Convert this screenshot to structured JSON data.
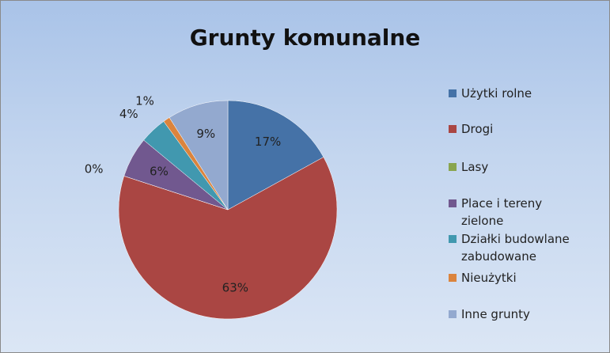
{
  "chart_data": {
    "type": "pie",
    "title": "Grunty komunalne",
    "categories": [
      "Użytki rolne",
      "Drogi",
      "Lasy",
      "Place i tereny zielone",
      "Działki budowlane zabudowane",
      "Nieużytki",
      "Inne grunty"
    ],
    "values": [
      17,
      63,
      0,
      6,
      4,
      1,
      9
    ],
    "value_labels": [
      "17%",
      "63%",
      "0%",
      "6%",
      "4%",
      "1%",
      "9%"
    ],
    "colors": [
      "#4572a7",
      "#aa4643",
      "#89a54e",
      "#71588f",
      "#4198af",
      "#db843d",
      "#93a9cf"
    ],
    "legend": "right"
  }
}
